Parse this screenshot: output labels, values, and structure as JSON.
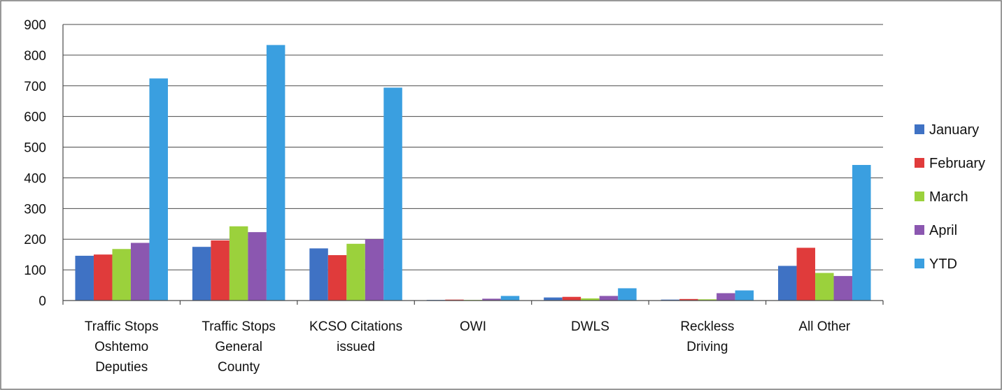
{
  "chart_data": {
    "type": "bar",
    "categories": [
      [
        "Traffic Stops",
        "Oshtemo",
        "Deputies"
      ],
      [
        "Traffic Stops",
        "General",
        "County"
      ],
      [
        "KCSO Citations",
        "issued"
      ],
      [
        "OWI"
      ],
      [
        "DWLS"
      ],
      [
        "Reckless",
        "Driving"
      ],
      [
        "All Other"
      ]
    ],
    "series": [
      {
        "name": "January",
        "color": "#3f72c4",
        "values": [
          146,
          175,
          170,
          2,
          10,
          3,
          113
        ]
      },
      {
        "name": "February",
        "color": "#e03b3b",
        "values": [
          150,
          196,
          148,
          3,
          12,
          5,
          172
        ]
      },
      {
        "name": "March",
        "color": "#9bd13c",
        "values": [
          168,
          242,
          185,
          2,
          7,
          4,
          90
        ]
      },
      {
        "name": "April",
        "color": "#8b57b0",
        "values": [
          188,
          223,
          200,
          6,
          15,
          24,
          80
        ]
      },
      {
        "name": "YTD",
        "color": "#3a9fe0",
        "values": [
          724,
          833,
          694,
          15,
          40,
          33,
          442
        ]
      }
    ],
    "ylim": [
      0,
      900
    ],
    "yticks": [
      "0",
      "100",
      "200",
      "300",
      "400",
      "500",
      "600",
      "700",
      "800",
      "900"
    ],
    "grid": true,
    "legend_position": "right"
  }
}
